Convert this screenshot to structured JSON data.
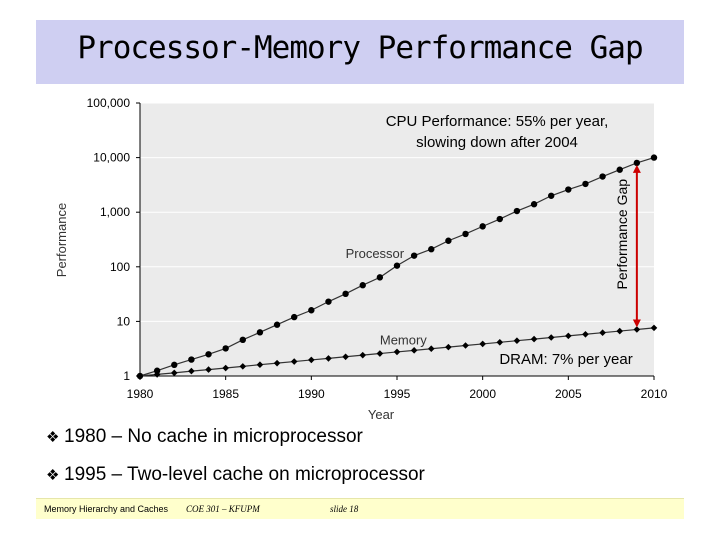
{
  "slide": {
    "title": "Processor-Memory Performance Gap",
    "bullets": [
      "1980 – No cache in microprocessor",
      "1995 – Two-level cache on microprocessor"
    ],
    "footer": {
      "left": "Memory Hierarchy and Caches",
      "course": "COE 301 – KFUPM",
      "slide": "slide 18"
    }
  },
  "colors": {
    "title_bg": "#cfcff2",
    "plot_bg": "#ebebeb",
    "gap_arrow": "#cc0000",
    "footer_bg": "#ffffcc"
  },
  "chart_data": {
    "type": "line",
    "title": "",
    "xlabel": "Year",
    "ylabel": "Performance",
    "xlim": [
      1980,
      2010
    ],
    "ylim": [
      1,
      100000
    ],
    "yscale": "log",
    "x_ticks": [
      1980,
      1985,
      1990,
      1995,
      2000,
      2005,
      2010
    ],
    "x_tick_labels": [
      "1980",
      "1985",
      "1990",
      "1995",
      "2000",
      "2005",
      "2010"
    ],
    "y_ticks": [
      1,
      10,
      100,
      1000,
      10000,
      100000
    ],
    "y_tick_labels": [
      "1",
      "10",
      "100",
      "1,000",
      "10,000",
      "100,000"
    ],
    "series": [
      {
        "name": "Processor",
        "x": [
          1980,
          1981,
          1982,
          1983,
          1984,
          1985,
          1986,
          1987,
          1988,
          1989,
          1990,
          1991,
          1992,
          1993,
          1994,
          1995,
          1996,
          1997,
          1998,
          1999,
          2000,
          2001,
          2002,
          2003,
          2004,
          2005,
          2006,
          2007,
          2008,
          2009,
          2010
        ],
        "y": [
          1,
          1.25,
          1.6,
          2,
          2.5,
          3.2,
          4.6,
          6.3,
          8.7,
          12,
          16,
          23,
          32,
          46,
          64,
          105,
          160,
          210,
          300,
          400,
          550,
          750,
          1050,
          1400,
          2000,
          2600,
          3300,
          4500,
          6000,
          8000,
          10000
        ]
      },
      {
        "name": "Memory",
        "x": [
          1980,
          1981,
          1982,
          1983,
          1984,
          1985,
          1986,
          1987,
          1988,
          1989,
          1990,
          1991,
          1992,
          1993,
          1994,
          1995,
          1996,
          1997,
          1998,
          1999,
          2000,
          2001,
          2002,
          2003,
          2004,
          2005,
          2006,
          2007,
          2008,
          2009,
          2010
        ],
        "y": [
          1,
          1.07,
          1.14,
          1.23,
          1.31,
          1.4,
          1.5,
          1.61,
          1.72,
          1.84,
          1.97,
          2.1,
          2.25,
          2.41,
          2.58,
          2.76,
          2.95,
          3.16,
          3.38,
          3.62,
          3.87,
          4.14,
          4.43,
          4.74,
          5.07,
          5.43,
          5.81,
          6.21,
          6.65,
          7.11,
          7.61
        ]
      }
    ],
    "annotations": {
      "cpu_text_1": "CPU Performance: 55% per year,",
      "cpu_text_2": "slowing down after 2004",
      "dram_text": "DRAM: 7% per year",
      "gap_label": "Performance Gap",
      "processor_label": "Processor",
      "memory_label": "Memory"
    },
    "gap_year": 2009
  }
}
